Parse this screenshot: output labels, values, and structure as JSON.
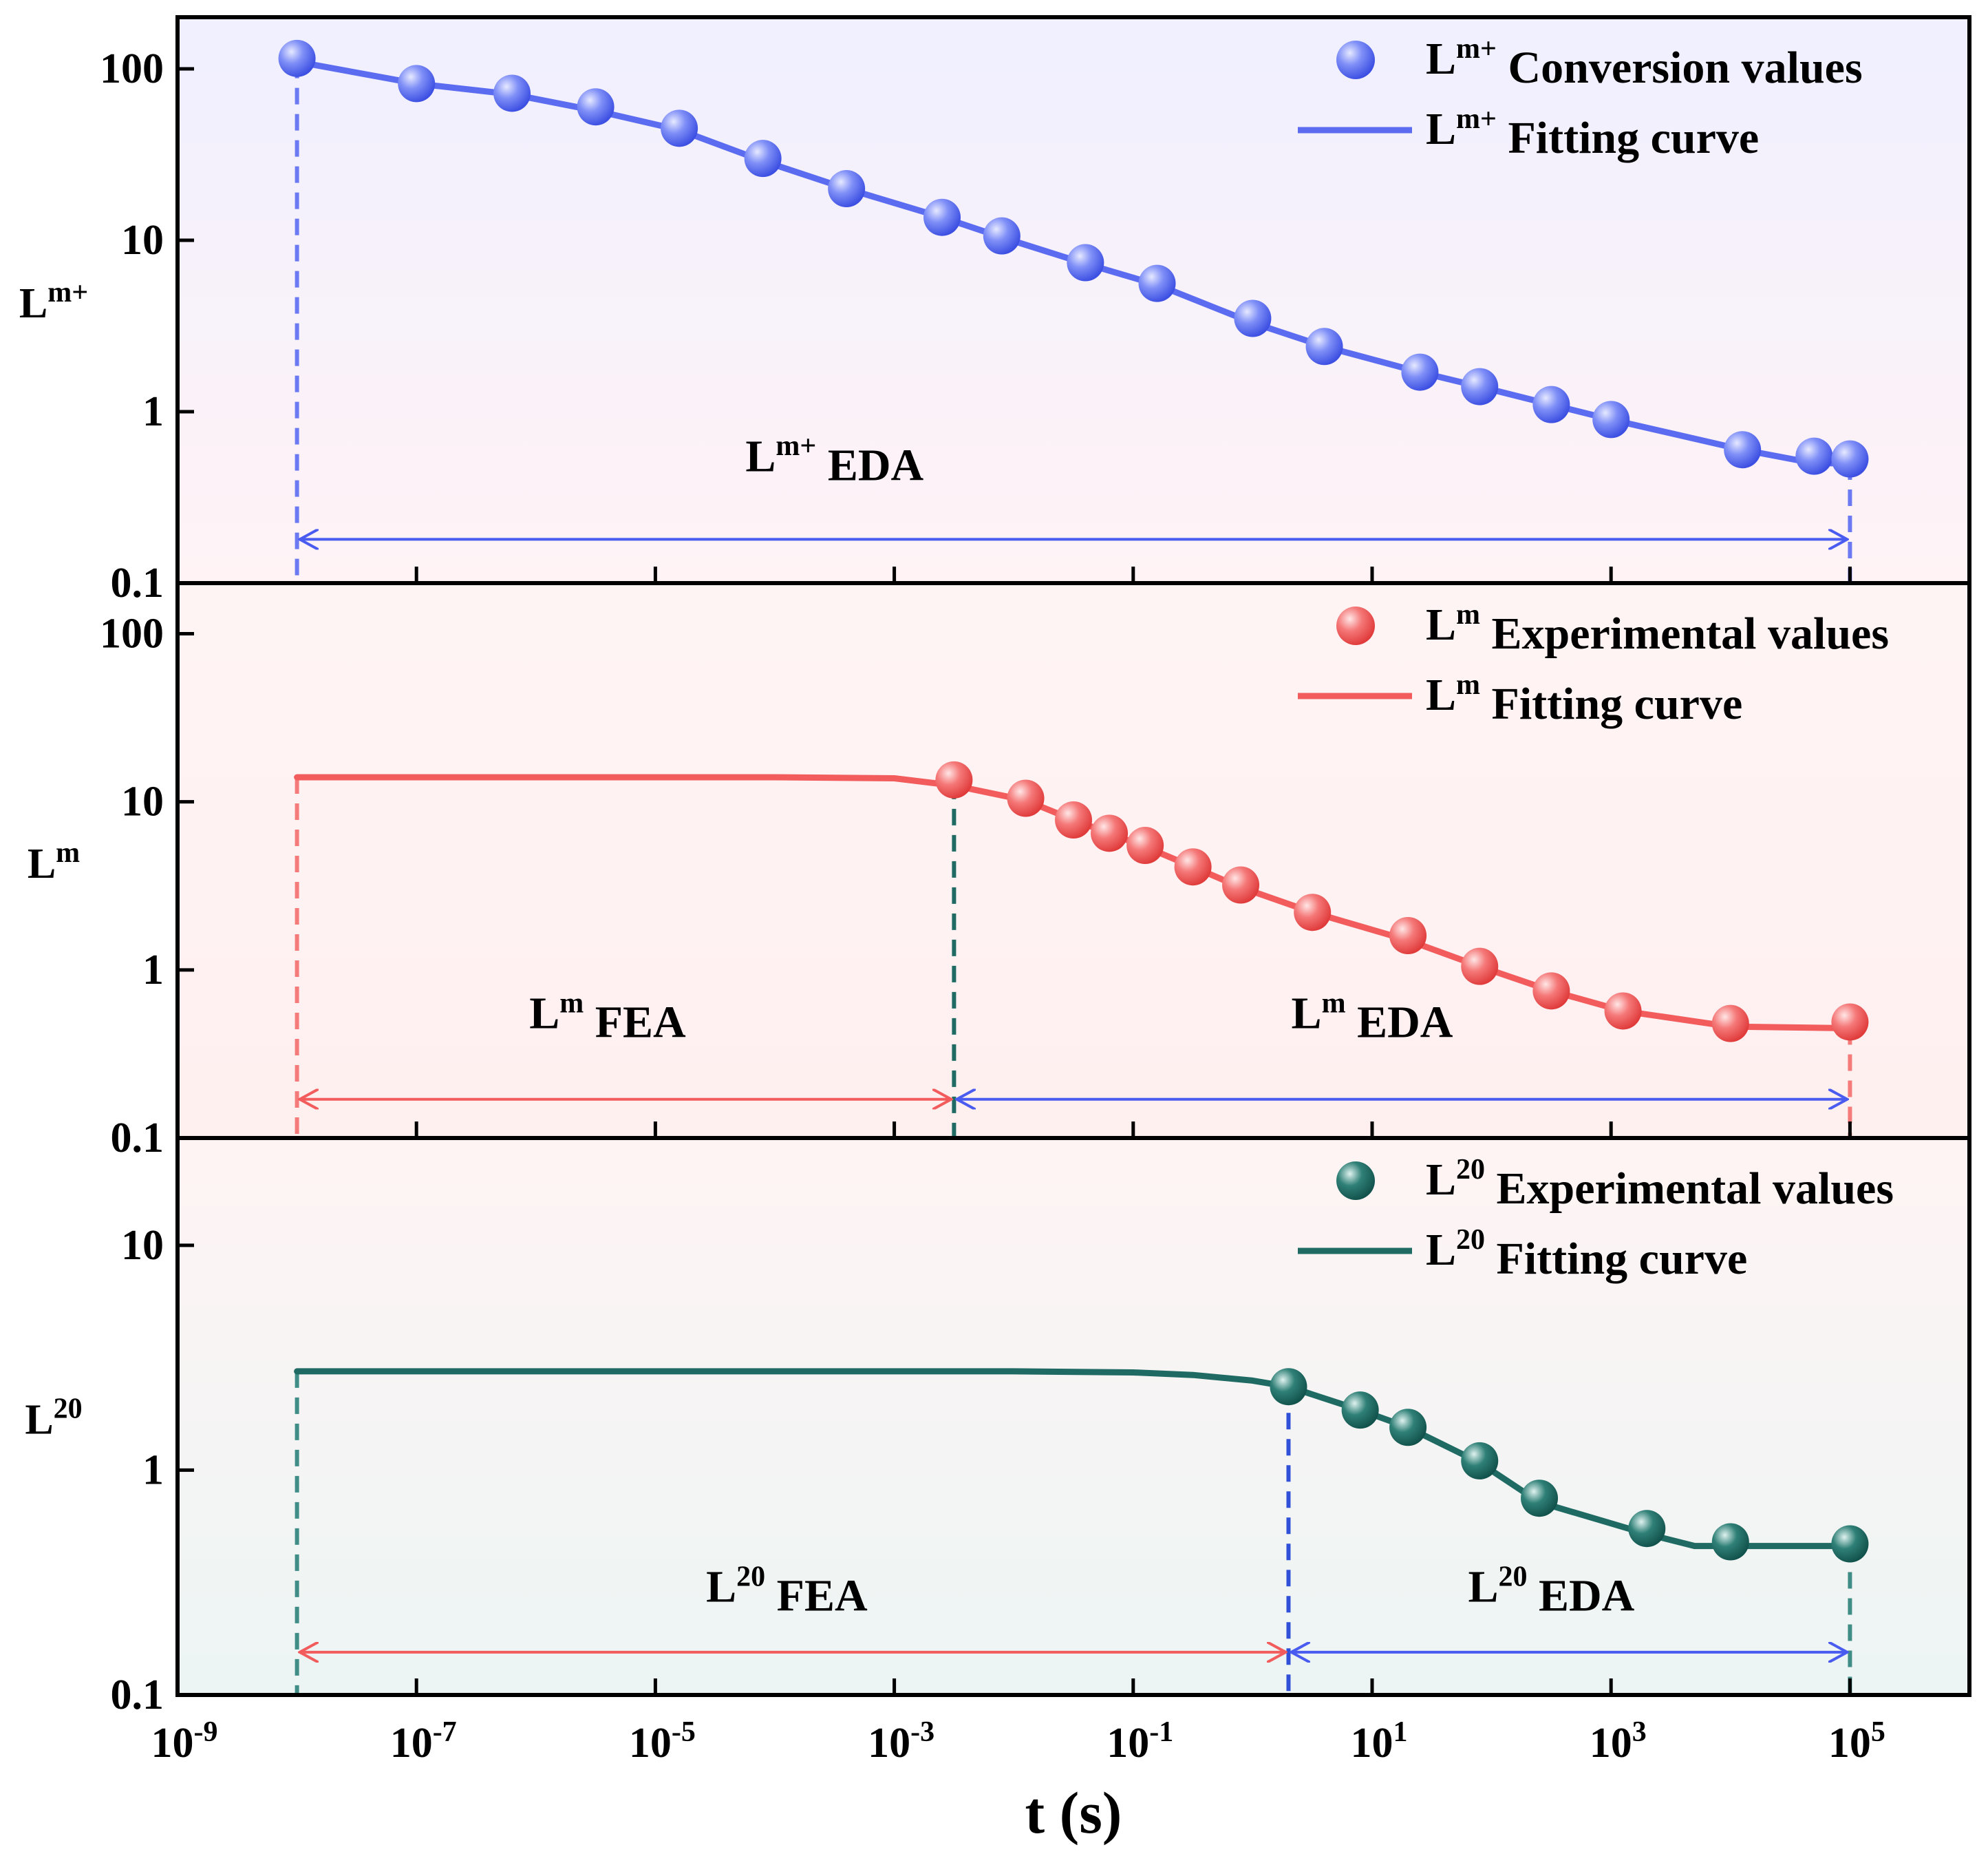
{
  "chart_data": [
    {
      "type": "scatter",
      "panel": "top",
      "ylabel": "L",
      "ylabel_sup": "m+",
      "yscale": "log",
      "ylim": [
        0.1,
        200
      ],
      "yticks": [
        {
          "v": 100,
          "label": "100"
        },
        {
          "v": 10,
          "label": "10"
        },
        {
          "v": 1,
          "label": "1"
        },
        {
          "v": 0.1,
          "label": "0.1"
        }
      ],
      "accent": "#5b6cf0",
      "series": [
        {
          "name": "Conversion values",
          "kind": "points",
          "legend_sup": "m+",
          "x": [
            -8,
            -7,
            -6.2,
            -5.5,
            -4.8,
            -4.1,
            -3.4,
            -2.6,
            -2.1,
            -1.4,
            -0.8,
            0.0,
            0.6,
            1.4,
            1.9,
            2.5,
            3.0,
            4.1,
            4.7,
            5.0
          ],
          "y": [
            115,
            82,
            72,
            60,
            45,
            30,
            20,
            13.6,
            10.6,
            7.4,
            5.6,
            3.5,
            2.4,
            1.7,
            1.4,
            1.1,
            0.9,
            0.6,
            0.55,
            0.53
          ]
        },
        {
          "name": "Fitting curve",
          "kind": "line",
          "legend_sup": "m+",
          "x": [
            -8,
            -7,
            -6.2,
            -5.5,
            -4.8,
            -4.1,
            -3.4,
            -2.6,
            -2.1,
            -1.4,
            -0.8,
            0.0,
            0.6,
            1.4,
            1.9,
            2.5,
            3.0,
            4.1,
            4.7,
            5.0
          ],
          "y": [
            110,
            82,
            71,
            57,
            44,
            29,
            20,
            13.6,
            10.4,
            7.3,
            5.5,
            3.3,
            2.4,
            1.7,
            1.4,
            1.1,
            0.9,
            0.6,
            0.5,
            0.5
          ]
        }
      ],
      "annotations": [
        {
          "text": "EDA",
          "sup": "m+",
          "x": -3.5,
          "y": 0.45
        }
      ],
      "ranges": [
        {
          "x0": -8,
          "x1": 5,
          "y": 0.18,
          "color": "#4a5cf0"
        }
      ],
      "vlines": [
        {
          "x": -8,
          "y_top": 110,
          "color": "#6b7af2"
        },
        {
          "x": 5,
          "y_top": 0.5,
          "color": "#6b7af2"
        }
      ]
    },
    {
      "type": "scatter",
      "panel": "middle",
      "ylabel": "L",
      "ylabel_sup": "m",
      "yscale": "log",
      "ylim": [
        0.1,
        200
      ],
      "yticks": [
        {
          "v": 100,
          "label": "100"
        },
        {
          "v": 10,
          "label": "10"
        },
        {
          "v": 1,
          "label": "1"
        },
        {
          "v": 0.1,
          "label": "0.1"
        }
      ],
      "accent": "#f25c5c",
      "series": [
        {
          "name": "Experimental values",
          "kind": "points",
          "legend_sup": "m",
          "x": [
            -2.5,
            -1.9,
            -1.5,
            -1.2,
            -0.9,
            -0.5,
            -0.1,
            0.5,
            1.3,
            1.9,
            2.5,
            3.1,
            4.0,
            5.0
          ],
          "y": [
            13.5,
            10.5,
            7.8,
            6.5,
            5.5,
            4.1,
            3.2,
            2.2,
            1.6,
            1.05,
            0.75,
            0.57,
            0.48,
            0.49
          ]
        },
        {
          "name": "Fitting curve",
          "kind": "line",
          "legend_sup": "m",
          "x": [
            -8,
            -6,
            -4,
            -3,
            -2.5,
            -1.9,
            -1.5,
            -1.2,
            -0.9,
            -0.5,
            -0.1,
            0.5,
            1.3,
            1.9,
            2.5,
            3.1,
            4.0,
            5.0
          ],
          "y": [
            14,
            14,
            14,
            13.8,
            12.5,
            10.2,
            7.8,
            6.5,
            5.4,
            4.1,
            3.1,
            2.2,
            1.5,
            1.05,
            0.75,
            0.57,
            0.46,
            0.45
          ]
        }
      ],
      "annotations": [
        {
          "text": "FEA",
          "sup": "m",
          "x": -5.4,
          "y": 0.45
        },
        {
          "text": "EDA",
          "sup": "m",
          "x": 1.0,
          "y": 0.45
        }
      ],
      "ranges": [
        {
          "x0": -8,
          "x1": -2.5,
          "y": 0.17,
          "color": "#f25c5c"
        },
        {
          "x0": -2.5,
          "x1": 5,
          "y": 0.17,
          "color": "#4a5cf0"
        }
      ],
      "vlines": [
        {
          "x": -8,
          "y_top": 14,
          "color": "#f57b7b"
        },
        {
          "x": -2.5,
          "y_top": 13,
          "color": "#1f6b64"
        },
        {
          "x": 5,
          "y_top": 0.45,
          "color": "#f57b7b"
        }
      ]
    },
    {
      "type": "scatter",
      "panel": "bottom",
      "ylabel": "L",
      "ylabel_sup": "20",
      "yscale": "log",
      "ylim": [
        0.1,
        30
      ],
      "yticks": [
        {
          "v": 10,
          "label": "10"
        },
        {
          "v": 1,
          "label": "1"
        },
        {
          "v": 0.1,
          "label": "0.1"
        }
      ],
      "accent": "#1f6b64",
      "xscale": "log10-exponent",
      "xlim": [
        -9,
        6
      ],
      "xticks": [
        -9,
        -7,
        -5,
        -3,
        -1,
        1,
        3,
        5
      ],
      "xlabel": "t (s)",
      "series": [
        {
          "name": "Experimental values",
          "kind": "points",
          "legend_sup": "20",
          "x": [
            0.3,
            0.9,
            1.3,
            1.9,
            2.4,
            3.3,
            4.0,
            5.0
          ],
          "y": [
            2.35,
            1.85,
            1.55,
            1.1,
            0.75,
            0.55,
            0.48,
            0.47
          ]
        },
        {
          "name": "Fitting curve",
          "kind": "line",
          "legend_sup": "20",
          "x": [
            -8,
            -5,
            -2,
            -1,
            -0.5,
            0,
            0.3,
            0.9,
            1.3,
            1.9,
            2.4,
            3.3,
            3.7,
            4.0,
            5.0
          ],
          "y": [
            2.75,
            2.75,
            2.75,
            2.72,
            2.65,
            2.5,
            2.35,
            1.85,
            1.55,
            1.08,
            0.72,
            0.52,
            0.46,
            0.46,
            0.46
          ]
        }
      ],
      "annotations": [
        {
          "text": "FEA",
          "sup": "20",
          "x": -3.9,
          "y": 0.26
        },
        {
          "text": "EDA",
          "sup": "20",
          "x": 2.5,
          "y": 0.26
        }
      ],
      "ranges": [
        {
          "x0": -8,
          "x1": 0.3,
          "y": 0.155,
          "color": "#f25c5c"
        },
        {
          "x0": 0.3,
          "x1": 5,
          "y": 0.155,
          "color": "#4a5cf0"
        }
      ],
      "vlines": [
        {
          "x": -8,
          "y_top": 2.75,
          "color": "#3f8d86"
        },
        {
          "x": 0.3,
          "y_top": 2.35,
          "color": "#3050d8"
        },
        {
          "x": 5,
          "y_top": 0.46,
          "color": "#3f8d86"
        }
      ]
    }
  ]
}
